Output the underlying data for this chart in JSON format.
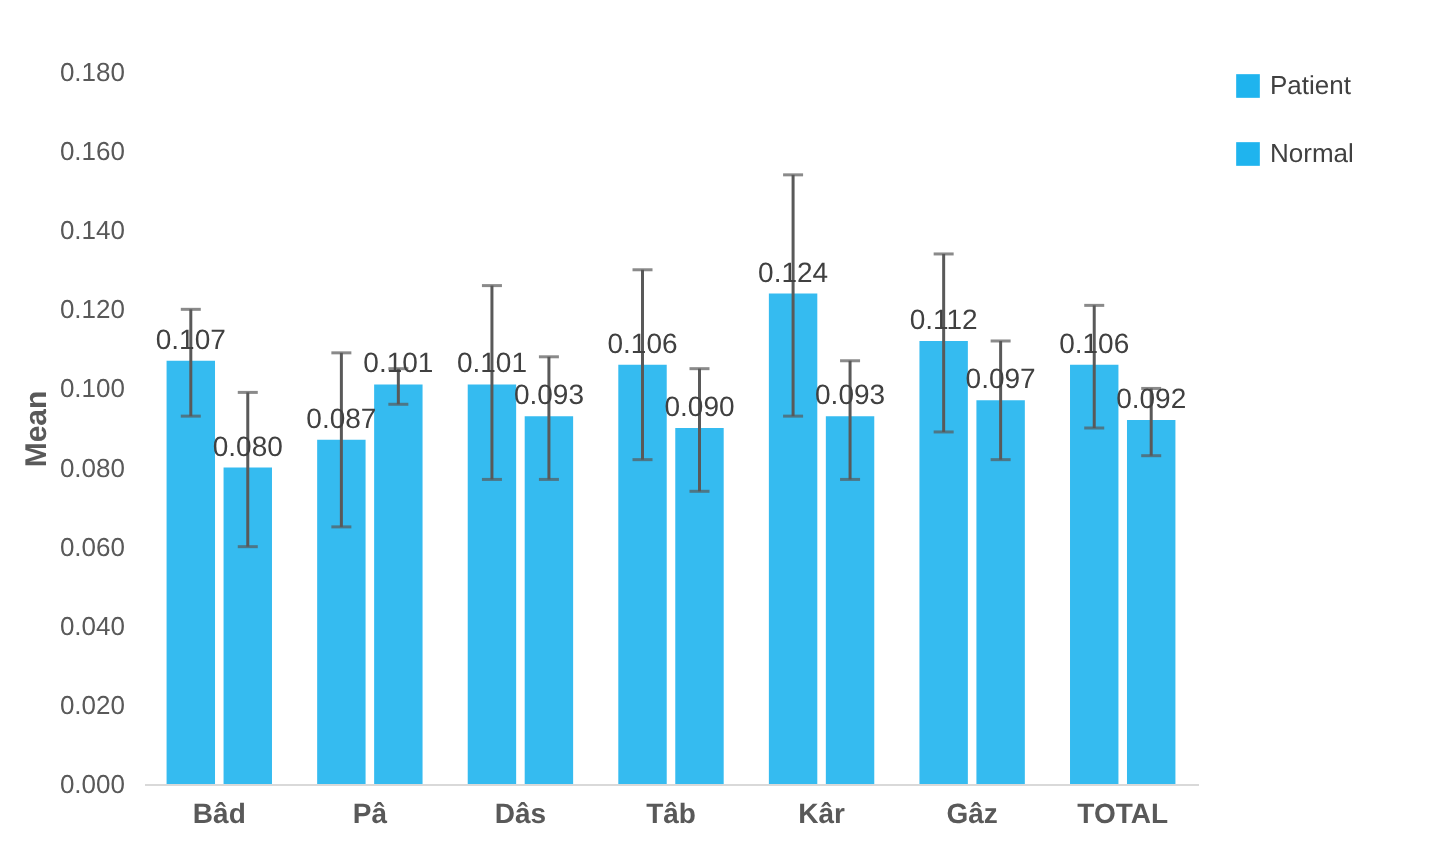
{
  "chart_data": {
    "type": "bar",
    "ylabel": "Mean",
    "categories": [
      "Bâd",
      "Pâ",
      "Dâs",
      "Tâb",
      "Kâr",
      "Gâz",
      "TOTAL"
    ],
    "series": [
      {
        "name": "Patient",
        "color": "#1fb4ee",
        "values": [
          0.107,
          0.087,
          0.101,
          0.106,
          0.124,
          0.112,
          0.106
        ],
        "value_labels": [
          "0.107",
          "0.087",
          "0.101",
          "0.106",
          "0.124",
          "0.112",
          "0.106"
        ],
        "errors": [
          [
            0.093,
            0.12
          ],
          [
            0.065,
            0.109
          ],
          [
            0.077,
            0.126
          ],
          [
            0.082,
            0.13
          ],
          [
            0.093,
            0.154
          ],
          [
            0.089,
            0.134
          ],
          [
            0.09,
            0.121
          ]
        ]
      },
      {
        "name": "Normal",
        "color": "#1fb4ee",
        "values": [
          0.08,
          0.101,
          0.093,
          0.09,
          0.093,
          0.097,
          0.092
        ],
        "value_labels": [
          "0.080",
          "0.101",
          "0.093",
          "0.090",
          "0.093",
          "0.097",
          "0.092"
        ],
        "errors": [
          [
            0.06,
            0.099
          ],
          [
            0.096,
            0.105
          ],
          [
            0.077,
            0.108
          ],
          [
            0.074,
            0.105
          ],
          [
            0.077,
            0.107
          ],
          [
            0.082,
            0.112
          ],
          [
            0.083,
            0.1
          ]
        ]
      }
    ],
    "ylim": [
      0,
      0.18
    ],
    "yticks": [
      {
        "value": 0,
        "label": "0.000"
      },
      {
        "value": 0.02,
        "label": "0.020"
      },
      {
        "value": 0.04,
        "label": "0.040"
      },
      {
        "value": 0.06,
        "label": "0.060"
      },
      {
        "value": 0.08,
        "label": "0.080"
      },
      {
        "value": 0.1,
        "label": "0.100"
      },
      {
        "value": 0.12,
        "label": "0.120"
      },
      {
        "value": 0.14,
        "label": "0.140"
      },
      {
        "value": 0.16,
        "label": "0.160"
      },
      {
        "value": 0.18,
        "label": "0.180"
      }
    ],
    "grid": false,
    "legend": "right"
  }
}
